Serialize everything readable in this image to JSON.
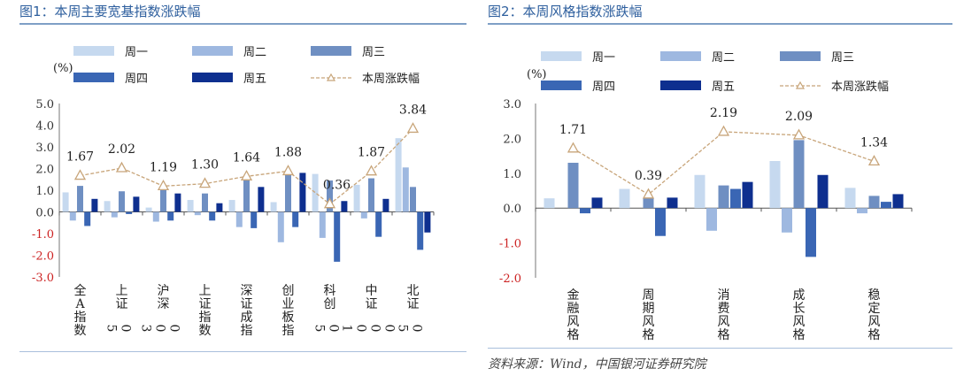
{
  "colors": {
    "mon": "#c6d9ef",
    "tue": "#9eb8e0",
    "wed": "#6f8fc2",
    "thu": "#3a66b4",
    "fri": "#0e2f8f",
    "line": "#c8a57a",
    "title": "#2e5f9e",
    "negative_tick": "#cc2222"
  },
  "left": {
    "title": "图1：本周主要宽基指数涨跌幅",
    "unit": "(%)",
    "legend": [
      "周一",
      "周二",
      "周三",
      "周四",
      "周五",
      "本周涨跌幅"
    ],
    "chart_data": {
      "type": "bar",
      "categories": [
        "全A指数",
        "上证50",
        "沪深300",
        "上证指数",
        "深证成指",
        "创业板指",
        "科创50",
        "中证1000",
        "北证50"
      ],
      "series": [
        {
          "name": "周一",
          "values": [
            0.9,
            0.5,
            0.2,
            0.55,
            0.55,
            0.45,
            1.75,
            1.25,
            3.4
          ]
        },
        {
          "name": "周二",
          "values": [
            -0.4,
            -0.25,
            -0.45,
            -0.15,
            -0.7,
            -1.4,
            -1.2,
            -0.3,
            2.05
          ]
        },
        {
          "name": "周三",
          "values": [
            1.2,
            0.95,
            1.05,
            0.85,
            1.45,
            1.75,
            1.45,
            1.55,
            1.15
          ]
        },
        {
          "name": "周四",
          "values": [
            -0.65,
            -0.1,
            -0.4,
            -0.4,
            -0.75,
            -0.7,
            -2.3,
            -1.15,
            -1.75
          ]
        },
        {
          "name": "周五",
          "values": [
            0.6,
            0.7,
            0.85,
            0.4,
            1.15,
            1.8,
            0.5,
            0.6,
            -0.95
          ]
        },
        {
          "name": "本周涨跌幅",
          "type": "line",
          "values": [
            1.67,
            2.02,
            1.19,
            1.3,
            1.64,
            1.88,
            0.36,
            1.87,
            3.84
          ]
        }
      ],
      "data_labels": [
        "1.67",
        "2.02",
        "1.19",
        "1.30",
        "1.64",
        "1.88",
        "0.36",
        "1.87",
        "3.84"
      ],
      "yticks": [
        "5.0",
        "4.0",
        "3.0",
        "2.0",
        "1.0",
        "0.0",
        "-1.0",
        "-2.0",
        "-3.0"
      ],
      "ylim": [
        -3,
        5
      ],
      "legend_position": "top"
    }
  },
  "right": {
    "title": "图2：本周风格指数涨跌幅",
    "unit": "(%)",
    "legend": [
      "周一",
      "周二",
      "周三",
      "周四",
      "周五",
      "本周涨跌幅"
    ],
    "source": "资料来源：Wind，中国银河证券研究院",
    "chart_data": {
      "type": "bar",
      "categories": [
        "金融风格",
        "周期风格",
        "消费风格",
        "成长风格",
        "稳定风格"
      ],
      "series": [
        {
          "name": "周一",
          "values": [
            0.28,
            0.55,
            0.95,
            1.35,
            0.58
          ]
        },
        {
          "name": "周二",
          "values": [
            0.0,
            0.0,
            -0.65,
            -0.7,
            -0.15
          ]
        },
        {
          "name": "周三",
          "values": [
            1.3,
            0.28,
            0.65,
            1.95,
            0.35
          ]
        },
        {
          "name": "周四",
          "values": [
            -0.15,
            -0.8,
            0.55,
            -1.4,
            0.18
          ]
        },
        {
          "name": "周五",
          "values": [
            0.3,
            0.3,
            0.75,
            0.95,
            0.4
          ]
        },
        {
          "name": "本周涨跌幅",
          "type": "line",
          "values": [
            1.71,
            0.39,
            2.19,
            2.09,
            1.34
          ]
        }
      ],
      "data_labels": [
        "1.71",
        "0.39",
        "2.19",
        "2.09",
        "1.34"
      ],
      "yticks": [
        "3.0",
        "2.0",
        "1.0",
        "0.0",
        "-1.0",
        "-2.0"
      ],
      "ylim": [
        -2,
        3
      ],
      "legend_position": "top"
    }
  }
}
